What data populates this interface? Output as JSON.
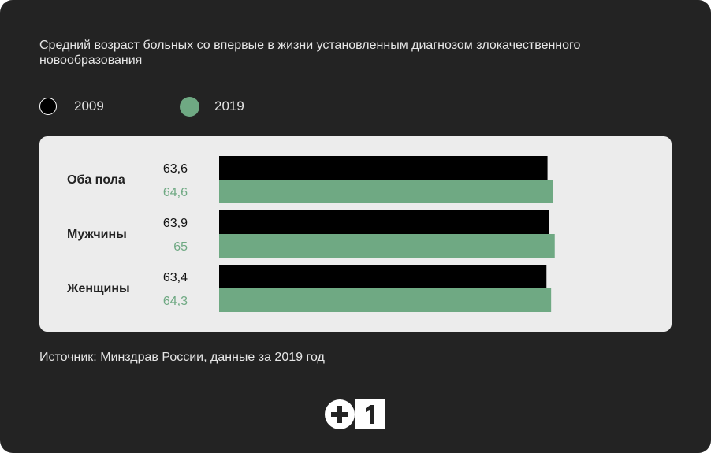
{
  "chart_data": {
    "type": "bar",
    "orientation": "horizontal",
    "title": "Средний возраст больных со впервые в жизни установленным диагнозом злокачественного новообразования",
    "categories": [
      "Оба пола",
      "Мужчины",
      "Женщины"
    ],
    "series": [
      {
        "name": "2009",
        "color": "#000000",
        "values": [
          63.6,
          63.9,
          63.4
        ],
        "labels": [
          "63,6",
          "63,9",
          "63,4"
        ]
      },
      {
        "name": "2019",
        "color": "#6fa983",
        "values": [
          64.6,
          65,
          64.3
        ],
        "labels": [
          "64,6",
          "65",
          "64,3"
        ]
      }
    ],
    "legend_position": "top-left",
    "grid": false,
    "source": "Источник: Минздрав России, данные за 2019 год"
  },
  "colors": {
    "background": "#232323",
    "panel": "#ececec",
    "accent": "#6fa983"
  },
  "logo": {
    "plus": "+",
    "digit": "1"
  }
}
